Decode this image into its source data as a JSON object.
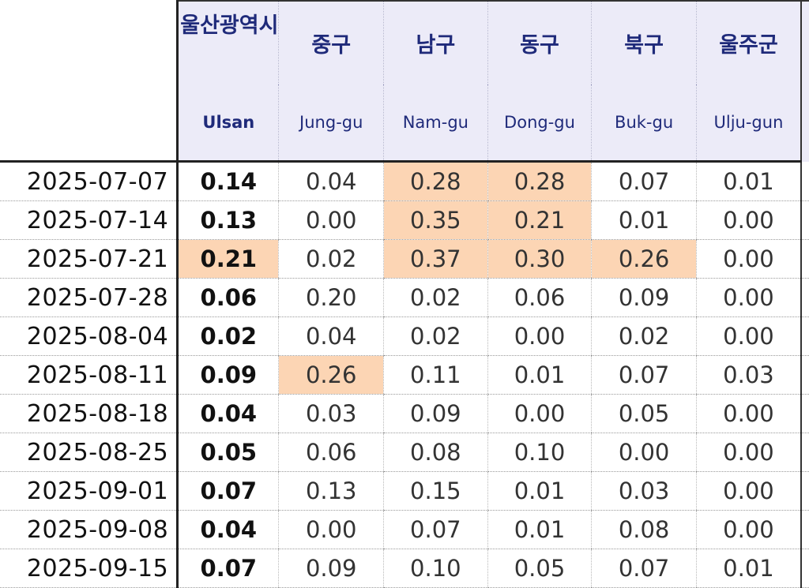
{
  "headers": [
    {
      "ko": "울산광역시",
      "en": "Ulsan"
    },
    {
      "ko": "중구",
      "en": "Jung-gu"
    },
    {
      "ko": "남구",
      "en": "Nam-gu"
    },
    {
      "ko": "동구",
      "en": "Dong-gu"
    },
    {
      "ko": "북구",
      "en": "Buk-gu"
    },
    {
      "ko": "울주군",
      "en": "Ulju-gun"
    }
  ],
  "highlight_color": "#fcd5b4",
  "header_bg_color": "#ecebf8",
  "header_text_color": "#1f2a7a",
  "rows": [
    {
      "date": "2025-07-07",
      "values": [
        "0.14",
        "0.04",
        "0.28",
        "0.28",
        "0.07",
        "0.01"
      ],
      "highlight": [
        false,
        false,
        true,
        true,
        false,
        false
      ]
    },
    {
      "date": "2025-07-14",
      "values": [
        "0.13",
        "0.00",
        "0.35",
        "0.21",
        "0.01",
        "0.00"
      ],
      "highlight": [
        false,
        false,
        true,
        true,
        false,
        false
      ]
    },
    {
      "date": "2025-07-21",
      "values": [
        "0.21",
        "0.02",
        "0.37",
        "0.30",
        "0.26",
        "0.00"
      ],
      "highlight": [
        true,
        false,
        true,
        true,
        true,
        false
      ]
    },
    {
      "date": "2025-07-28",
      "values": [
        "0.06",
        "0.20",
        "0.02",
        "0.06",
        "0.09",
        "0.00"
      ],
      "highlight": [
        false,
        false,
        false,
        false,
        false,
        false
      ]
    },
    {
      "date": "2025-08-04",
      "values": [
        "0.02",
        "0.04",
        "0.02",
        "0.00",
        "0.02",
        "0.00"
      ],
      "highlight": [
        false,
        false,
        false,
        false,
        false,
        false
      ]
    },
    {
      "date": "2025-08-11",
      "values": [
        "0.09",
        "0.26",
        "0.11",
        "0.01",
        "0.07",
        "0.03"
      ],
      "highlight": [
        false,
        true,
        false,
        false,
        false,
        false
      ]
    },
    {
      "date": "2025-08-18",
      "values": [
        "0.04",
        "0.03",
        "0.09",
        "0.00",
        "0.05",
        "0.00"
      ],
      "highlight": [
        false,
        false,
        false,
        false,
        false,
        false
      ]
    },
    {
      "date": "2025-08-25",
      "values": [
        "0.05",
        "0.06",
        "0.08",
        "0.10",
        "0.00",
        "0.00"
      ],
      "highlight": [
        false,
        false,
        false,
        false,
        false,
        false
      ]
    },
    {
      "date": "2025-09-01",
      "values": [
        "0.07",
        "0.13",
        "0.15",
        "0.01",
        "0.03",
        "0.00"
      ],
      "highlight": [
        false,
        false,
        false,
        false,
        false,
        false
      ]
    },
    {
      "date": "2025-09-08",
      "values": [
        "0.04",
        "0.00",
        "0.07",
        "0.01",
        "0.08",
        "0.00"
      ],
      "highlight": [
        false,
        false,
        false,
        false,
        false,
        false
      ]
    },
    {
      "date": "2025-09-15",
      "values": [
        "0.07",
        "0.09",
        "0.10",
        "0.05",
        "0.07",
        "0.01"
      ],
      "highlight": [
        false,
        false,
        false,
        false,
        false,
        false
      ]
    }
  ]
}
